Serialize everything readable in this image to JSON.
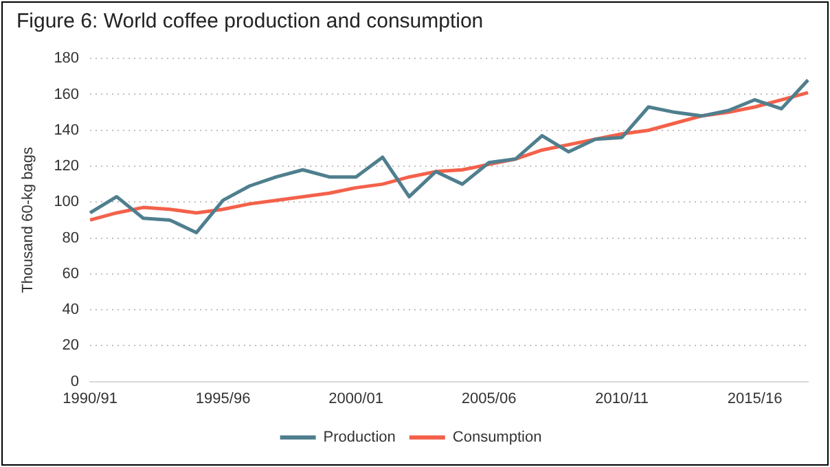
{
  "chart_data": {
    "type": "line",
    "title": "Figure 6: World coffee production  and consumption",
    "ylabel": "Thousand 60-kg bags",
    "categories": [
      "1990/91",
      null,
      null,
      null,
      null,
      "1995/96",
      null,
      null,
      null,
      null,
      "2000/01",
      null,
      null,
      null,
      null,
      "2005/06",
      null,
      null,
      null,
      null,
      "2010/11",
      null,
      null,
      null,
      null,
      "2015/16",
      null,
      null
    ],
    "series": [
      {
        "name": "Production",
        "color": "#4f7f8e",
        "values": [
          94,
          103,
          91,
          90,
          83,
          101,
          109,
          114,
          118,
          114,
          114,
          125,
          103,
          117,
          110,
          122,
          124,
          137,
          128,
          135,
          136,
          153,
          150,
          148,
          151,
          157,
          152,
          168
        ]
      },
      {
        "name": "Consumption",
        "color": "#f4614a",
        "values": [
          90,
          94,
          97,
          96,
          94,
          96,
          99,
          101,
          103,
          105,
          108,
          110,
          114,
          117,
          118,
          121,
          124,
          129,
          132,
          135,
          138,
          140,
          144,
          148,
          150,
          153,
          157,
          161
        ]
      }
    ],
    "ylim": [
      0,
      180
    ],
    "yticks": [
      0,
      20,
      40,
      60,
      80,
      100,
      120,
      140,
      160,
      180
    ],
    "grid": "y",
    "legend": "bottom",
    "marker": "none",
    "line_style": "solid"
  }
}
